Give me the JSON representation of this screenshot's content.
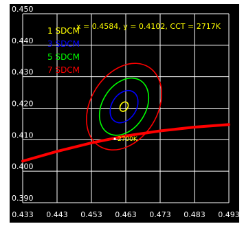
{
  "chart_data": {
    "type": "line",
    "title": "",
    "xlabel": "",
    "ylabel": "",
    "xlim": [
      0.433,
      0.493
    ],
    "ylim": [
      0.39,
      0.45
    ],
    "x_ticks": [
      "0.433",
      "0.443",
      "0.453",
      "0.463",
      "0.473",
      "0.483",
      "0.493"
    ],
    "y_ticks": [
      "0.390",
      "0.400",
      "0.410",
      "0.420",
      "0.430",
      "0.440",
      "0.450"
    ],
    "x_tick_values": [
      0.433,
      0.443,
      0.453,
      0.463,
      0.473,
      0.483,
      0.493
    ],
    "y_tick_values": [
      0.39,
      0.4,
      0.41,
      0.42,
      0.43,
      0.44,
      0.45
    ],
    "grid": true,
    "readout": "x = 0.4584, y = 0.4102, CCT = 2717K",
    "center": {
      "x": 0.4625,
      "y": 0.4205
    },
    "ellipses": [
      {
        "label": "1 SDCM",
        "color": "#ffff00",
        "semi_major": 0.0016,
        "semi_minor": 0.0011,
        "angle_deg": 58
      },
      {
        "label": "3 SDCM",
        "color": "#0000ff",
        "semi_major": 0.0055,
        "semi_minor": 0.0036,
        "angle_deg": 58
      },
      {
        "label": "5 SDCM",
        "color": "#00ff00",
        "semi_major": 0.0098,
        "semi_minor": 0.0063,
        "angle_deg": 58
      },
      {
        "label": "7 SDCM",
        "color": "#ff0000",
        "semi_major": 0.0148,
        "semi_minor": 0.0097,
        "angle_deg": 58
      }
    ],
    "planckian_locus": {
      "color": "#ff0000",
      "points": [
        [
          0.433,
          0.4032
        ],
        [
          0.443,
          0.4063
        ],
        [
          0.453,
          0.409
        ],
        [
          0.463,
          0.4112
        ],
        [
          0.473,
          0.4128
        ],
        [
          0.483,
          0.414
        ],
        [
          0.493,
          0.4148
        ]
      ]
    },
    "cct_marker": {
      "label": "2700K",
      "x": 0.4598,
      "y": 0.4103,
      "color": "#ffff00"
    },
    "colors": {
      "background": "#000000",
      "grid": "#ffffff",
      "text": "#ffffff",
      "readout": "#ffff00"
    }
  }
}
